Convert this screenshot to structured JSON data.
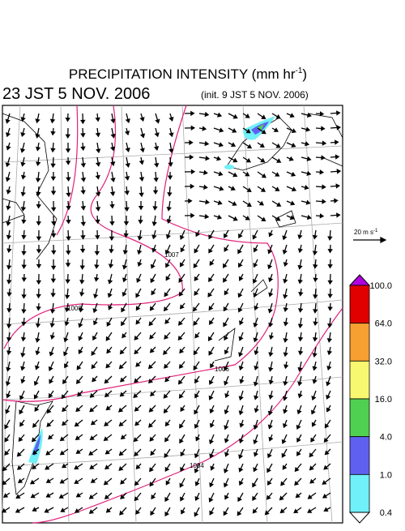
{
  "header": {
    "title": {
      "text": "PRECIPITATION INTENSITY (mm hr",
      "superscript": "-1",
      "suffix": ")"
    },
    "valid_time": "23 JST 5 NOV. 2006",
    "init_time": "(init. 9 JST 5 NOV. 2006)"
  },
  "wind_scale": {
    "text": "20 m s",
    "superscript": "-1"
  },
  "isobars": [
    {
      "label": "1007"
    },
    {
      "label": "1008"
    },
    {
      "label": "1006"
    },
    {
      "label": "1004"
    }
  ],
  "colorbar": {
    "labels": [
      "100.0",
      "64.0",
      "32.0",
      "16.0",
      "4.0",
      "1.0",
      "0.4"
    ],
    "colors": [
      "#b000e0",
      "#e00000",
      "#f5a030",
      "#f8f870",
      "#50d050",
      "#6060f0",
      "#70f0f8",
      "#ffffff"
    ]
  }
}
